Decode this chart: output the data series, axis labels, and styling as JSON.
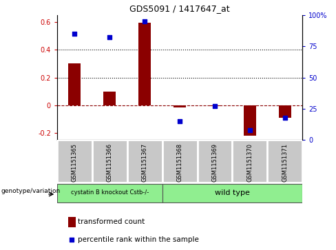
{
  "title": "GDS5091 / 1417647_at",
  "categories": [
    "GSM1151365",
    "GSM1151366",
    "GSM1151367",
    "GSM1151368",
    "GSM1151369",
    "GSM1151370",
    "GSM1151371"
  ],
  "bar_values": [
    0.3,
    0.1,
    0.595,
    -0.015,
    -0.005,
    -0.22,
    -0.09
  ],
  "scatter_pct": [
    85,
    82,
    95,
    15,
    27,
    8,
    18
  ],
  "bar_color": "#8B0000",
  "scatter_color": "#0000CD",
  "ylim_left": [
    -0.25,
    0.65
  ],
  "ylim_right": [
    0,
    100
  ],
  "yticks_left": [
    -0.2,
    0.0,
    0.2,
    0.4,
    0.6
  ],
  "yticks_right": [
    0,
    25,
    50,
    75,
    100
  ],
  "ytick_labels_right": [
    "0",
    "25",
    "50",
    "75",
    "100%"
  ],
  "ytick_labels_left": [
    "-0.2",
    "0",
    "0.2",
    "0.4",
    "0.6"
  ],
  "dotted_lines": [
    0.2,
    0.4
  ],
  "groups": [
    {
      "label": "cystatin B knockout Cstb-/-",
      "start": 0,
      "end": 2,
      "color": "#90EE90"
    },
    {
      "label": "wild type",
      "start": 3,
      "end": 6,
      "color": "#90EE90"
    }
  ],
  "genotype_label": "genotype/variation",
  "legend_bar_label": "transformed count",
  "legend_scatter_label": "percentile rank within the sample",
  "ylabel_left_color": "#cc0000",
  "ylabel_right_color": "#0000cc"
}
